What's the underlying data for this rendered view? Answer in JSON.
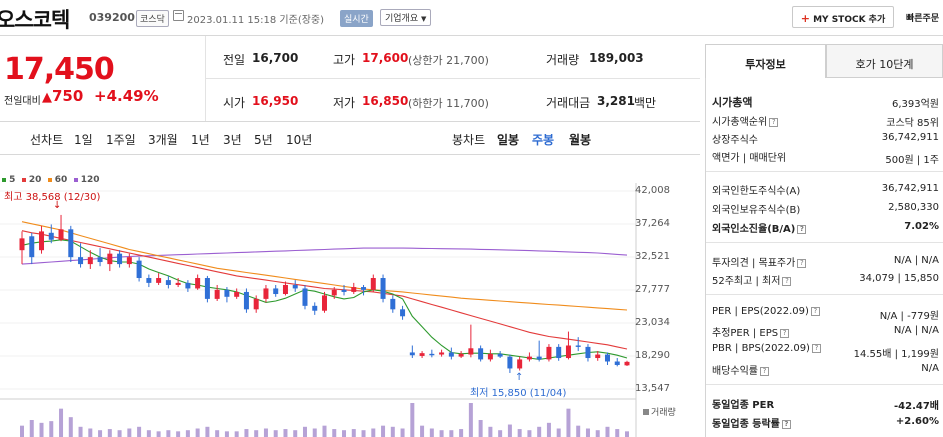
{
  "header": {
    "company_name": "오스코텍",
    "code": "039200",
    "market_tag": "코스닥",
    "datetime": "2023.01.11 15:18 기준(장중)",
    "realtime_tag": "실시간",
    "overview_label": "기업개요",
    "mystock_label": "MY STOCK 추가",
    "quick_label": "빠른주문"
  },
  "quote": {
    "price": "17,450",
    "change_label": "전일대비",
    "change_value": "750",
    "change_pct": "+4.49%"
  },
  "summary": {
    "prev_label": "전일",
    "prev_value": "16,700",
    "high_label": "고가",
    "high_value": "17,600",
    "upper_limit": "(상한가 21,700)",
    "volume_label": "거래량",
    "volume_value": "189,003",
    "open_label": "시가",
    "open_value": "16,950",
    "low_label": "저가",
    "low_value": "16,850",
    "lower_limit": "(하한가 11,700)",
    "amount_label": "거래대금",
    "amount_value": "3,281",
    "amount_unit": "백만"
  },
  "periods": {
    "line_label": "선차트",
    "line_items": [
      "1일",
      "1주일",
      "3개월",
      "1년",
      "3년",
      "5년",
      "10년"
    ],
    "candle_label": "봉차트",
    "candle_items": [
      "일봉",
      "주봉",
      "월봉"
    ],
    "candle_active": "주봉"
  },
  "chart_data": {
    "type": "candlestick",
    "ma_legend": [
      {
        "name": "5",
        "color": "#2e9a2e"
      },
      {
        "name": "20",
        "color": "#e33b3b"
      },
      {
        "name": "60",
        "color": "#f08c1c"
      },
      {
        "name": "120",
        "color": "#9b5fd1"
      }
    ],
    "y_ticks": [
      "42,008",
      "37,264",
      "32,521",
      "27,777",
      "23,034",
      "18,290",
      "13,547"
    ],
    "ylim": [
      13547,
      42008
    ],
    "max_annotation": "최고 38,568 (12/30)",
    "min_annotation": "최저 15,850 (11/04)",
    "volume_label": "거래량",
    "candles": [
      {
        "o": 33500,
        "c": 35200,
        "h": 36200,
        "l": 31500
      },
      {
        "o": 35500,
        "c": 32500,
        "h": 36000,
        "l": 31500
      },
      {
        "o": 33500,
        "c": 36200,
        "h": 37000,
        "l": 33000
      },
      {
        "o": 36000,
        "c": 35000,
        "h": 37200,
        "l": 34500
      },
      {
        "o": 35000,
        "c": 36500,
        "h": 38568,
        "l": 34800
      },
      {
        "o": 36500,
        "c": 32500,
        "h": 37000,
        "l": 31800
      },
      {
        "o": 32500,
        "c": 31500,
        "h": 34500,
        "l": 31000
      },
      {
        "o": 31500,
        "c": 32500,
        "h": 33500,
        "l": 30800
      },
      {
        "o": 32500,
        "c": 31800,
        "h": 33800,
        "l": 31200
      },
      {
        "o": 31500,
        "c": 33000,
        "h": 33500,
        "l": 30500
      },
      {
        "o": 33000,
        "c": 31500,
        "h": 33500,
        "l": 31000
      },
      {
        "o": 31500,
        "c": 32500,
        "h": 33000,
        "l": 31000
      },
      {
        "o": 32000,
        "c": 29500,
        "h": 32500,
        "l": 29000
      },
      {
        "o": 29500,
        "c": 28800,
        "h": 30000,
        "l": 28200
      },
      {
        "o": 28800,
        "c": 29500,
        "h": 30200,
        "l": 28500
      },
      {
        "o": 29200,
        "c": 28500,
        "h": 29800,
        "l": 28000
      },
      {
        "o": 28500,
        "c": 28800,
        "h": 29500,
        "l": 28200
      },
      {
        "o": 28800,
        "c": 28000,
        "h": 29200,
        "l": 27500
      },
      {
        "o": 28000,
        "c": 29500,
        "h": 30000,
        "l": 27800
      },
      {
        "o": 29500,
        "c": 26500,
        "h": 29800,
        "l": 26000
      },
      {
        "o": 26500,
        "c": 27800,
        "h": 28500,
        "l": 26200
      },
      {
        "o": 27800,
        "c": 26800,
        "h": 28200,
        "l": 26000
      },
      {
        "o": 26800,
        "c": 27500,
        "h": 28000,
        "l": 26500
      },
      {
        "o": 27500,
        "c": 25000,
        "h": 28000,
        "l": 24500
      },
      {
        "o": 25000,
        "c": 26500,
        "h": 27000,
        "l": 24500
      },
      {
        "o": 26500,
        "c": 28000,
        "h": 28500,
        "l": 26000
      },
      {
        "o": 28000,
        "c": 27200,
        "h": 28500,
        "l": 26800
      },
      {
        "o": 27200,
        "c": 28500,
        "h": 29000,
        "l": 27000
      },
      {
        "o": 28500,
        "c": 28000,
        "h": 29200,
        "l": 27500
      },
      {
        "o": 28000,
        "c": 25500,
        "h": 28500,
        "l": 25000
      },
      {
        "o": 25500,
        "c": 24800,
        "h": 26000,
        "l": 24200
      },
      {
        "o": 24800,
        "c": 27000,
        "h": 27500,
        "l": 24500
      },
      {
        "o": 27000,
        "c": 27800,
        "h": 28200,
        "l": 26500
      },
      {
        "o": 27800,
        "c": 27500,
        "h": 28500,
        "l": 27000
      },
      {
        "o": 27500,
        "c": 28200,
        "h": 28800,
        "l": 27200
      },
      {
        "o": 28200,
        "c": 27800,
        "h": 28500,
        "l": 27000
      },
      {
        "o": 27800,
        "c": 29500,
        "h": 30000,
        "l": 27500
      },
      {
        "o": 29500,
        "c": 26500,
        "h": 30000,
        "l": 26000
      },
      {
        "o": 26500,
        "c": 25000,
        "h": 27000,
        "l": 24500
      },
      {
        "o": 25000,
        "c": 24000,
        "h": 25500,
        "l": 23500
      },
      {
        "o": 18800,
        "c": 18400,
        "h": 19800,
        "l": 18000
      },
      {
        "o": 18300,
        "c": 18700,
        "h": 19000,
        "l": 18000
      },
      {
        "o": 18600,
        "c": 18400,
        "h": 19200,
        "l": 18100
      },
      {
        "o": 18500,
        "c": 18800,
        "h": 19200,
        "l": 18200
      },
      {
        "o": 18800,
        "c": 18200,
        "h": 19500,
        "l": 17800
      },
      {
        "o": 18200,
        "c": 18600,
        "h": 19000,
        "l": 18000
      },
      {
        "o": 18500,
        "c": 19400,
        "h": 22800,
        "l": 18100
      },
      {
        "o": 19400,
        "c": 17800,
        "h": 19800,
        "l": 17500
      },
      {
        "o": 17800,
        "c": 18600,
        "h": 19200,
        "l": 17500
      },
      {
        "o": 18600,
        "c": 18200,
        "h": 19000,
        "l": 18000
      },
      {
        "o": 18200,
        "c": 16500,
        "h": 18500,
        "l": 15850
      },
      {
        "o": 16500,
        "c": 17800,
        "h": 18200,
        "l": 16200
      },
      {
        "o": 17800,
        "c": 18200,
        "h": 18800,
        "l": 17500
      },
      {
        "o": 18200,
        "c": 17800,
        "h": 20500,
        "l": 17500
      },
      {
        "o": 17800,
        "c": 19600,
        "h": 20000,
        "l": 17500
      },
      {
        "o": 19600,
        "c": 18000,
        "h": 20000,
        "l": 17600
      },
      {
        "o": 18000,
        "c": 19800,
        "h": 21800,
        "l": 17800
      },
      {
        "o": 19800,
        "c": 19600,
        "h": 21000,
        "l": 19000
      },
      {
        "o": 19600,
        "c": 18000,
        "h": 20000,
        "l": 17500
      },
      {
        "o": 18000,
        "c": 18500,
        "h": 19000,
        "l": 17600
      },
      {
        "o": 18500,
        "c": 17500,
        "h": 18800,
        "l": 17000
      },
      {
        "o": 17500,
        "c": 17000,
        "h": 18000,
        "l": 16800
      },
      {
        "o": 16950,
        "c": 17450,
        "h": 17600,
        "l": 16850
      }
    ],
    "ma5": [
      34200,
      34500,
      34700,
      34800,
      35000,
      34800,
      34000,
      33200,
      32500,
      32000,
      31800,
      31800,
      31500,
      30800,
      30300,
      29800,
      29200,
      28700,
      28500,
      28200,
      28000,
      27800,
      27500,
      27000,
      26500,
      26000,
      26200,
      26600,
      27200,
      27800,
      27600,
      27200,
      26800,
      26500,
      26700,
      27500,
      27800,
      27600,
      27200,
      26500,
      24000,
      22500,
      21000,
      19800,
      18800,
      18600,
      18700,
      18700,
      18600,
      18600,
      18400,
      18200,
      18000,
      17800,
      18000,
      18200,
      18400,
      18600,
      18800,
      18900,
      18700,
      18400,
      18000
    ],
    "ma20": [
      36300,
      36000,
      35800,
      35500,
      35200,
      34900,
      34600,
      34300,
      34000,
      33700,
      33400,
      33100,
      32800,
      32500,
      32200,
      31900,
      31600,
      31300,
      31000,
      30700,
      30400,
      30100,
      29800,
      29600,
      29400,
      29200,
      29000,
      28800,
      28600,
      28400,
      28200,
      28000,
      27900,
      27800,
      27700,
      27600,
      27500,
      27300,
      27100,
      26900,
      26500,
      26100,
      25700,
      25300,
      24900,
      24500,
      24100,
      23700,
      23300,
      22900,
      22500,
      22100,
      21700,
      21400,
      21100,
      20900,
      20700,
      20500,
      20300,
      20100,
      19900,
      19600,
      19300
    ],
    "ma60": [
      37600,
      37300,
      37000,
      36700,
      36400,
      36000,
      35600,
      35200,
      34800,
      34400,
      34000,
      33600,
      33300,
      33000,
      32700,
      32400,
      32100,
      31800,
      31500,
      31200,
      30900,
      30700,
      30500,
      30300,
      30100,
      29900,
      29700,
      29500,
      29300,
      29100,
      28900,
      28700,
      28500,
      28300,
      28100,
      27900,
      27800,
      27700,
      27600,
      27500,
      27350,
      27200,
      27050,
      26900,
      26750,
      26600,
      26500,
      26400,
      26300,
      26200,
      26100,
      26000,
      25900,
      25800,
      25700,
      25600,
      25500,
      25400,
      25300,
      25200,
      25100,
      25000,
      24900
    ],
    "ma120": [
      31500,
      31600,
      31700,
      31800,
      31900,
      32000,
      32100,
      32200,
      32300,
      32400,
      32500,
      32600,
      32650,
      32700,
      32750,
      32800,
      32850,
      32900,
      32950,
      33000,
      33050,
      33100,
      33150,
      33200,
      33250,
      33300,
      33350,
      33400,
      33450,
      33500,
      33550,
      33600,
      33650,
      33700,
      33750,
      33800,
      33800,
      33800,
      33800,
      33800,
      33780,
      33760,
      33740,
      33720,
      33700,
      33680,
      33650,
      33620,
      33590,
      33560,
      33520,
      33480,
      33440,
      33400,
      33350,
      33300,
      33250,
      33200,
      33150,
      33100,
      33000,
      32900,
      32800
    ],
    "volume": [
      20,
      30,
      25,
      28,
      50,
      35,
      18,
      15,
      12,
      14,
      12,
      15,
      18,
      12,
      10,
      12,
      10,
      12,
      15,
      18,
      12,
      10,
      10,
      14,
      12,
      15,
      12,
      14,
      12,
      18,
      15,
      20,
      14,
      12,
      14,
      12,
      15,
      20,
      18,
      15,
      60,
      20,
      15,
      12,
      12,
      14,
      60,
      30,
      18,
      12,
      22,
      14,
      12,
      18,
      25,
      15,
      50,
      20,
      15,
      12,
      18,
      14,
      10
    ]
  },
  "right_panel": {
    "tab_invest": "투자정보",
    "tab_hoga": "호가 10단계",
    "market_cap_label": "시가총액",
    "market_cap_value": "6,393억원",
    "cap_rank_label": "시가총액순위",
    "cap_rank_value": "코스닥 85위",
    "shares_label": "상장주식수",
    "shares_value": "36,742,911",
    "par_label": "액면가 | 매매단위",
    "par_value": "500원 | 1주",
    "foreign_limit_label": "외국인한도주식수(A)",
    "foreign_limit_value": "36,742,911",
    "foreign_hold_label": "외국인보유주식수(B)",
    "foreign_hold_value": "2,580,330",
    "foreign_ratio_label": "외국인소진율(B/A)",
    "foreign_ratio_value": "7.02%",
    "opinion_label": "투자의견 | 목표주가",
    "opinion_value": "N/A | N/A",
    "w52_label": "52주최고 | 최저",
    "w52_value": "34,079 | 15,850",
    "per_label": "PER | EPS(2022.09)",
    "per_value": "N/A | -779원",
    "est_per_label": "추정PER | EPS",
    "est_per_value": "N/A | N/A",
    "pbr_label": "PBR | BPS(2022.09)",
    "pbr_value": "14.55배 | 1,199원",
    "dividend_label": "배당수익률",
    "dividend_value": "N/A",
    "industry_per_label": "동일업종 PER",
    "industry_per_value": "-42.47배",
    "industry_change_label": "동일업종 등락률",
    "industry_change_value": "+2.60%"
  }
}
